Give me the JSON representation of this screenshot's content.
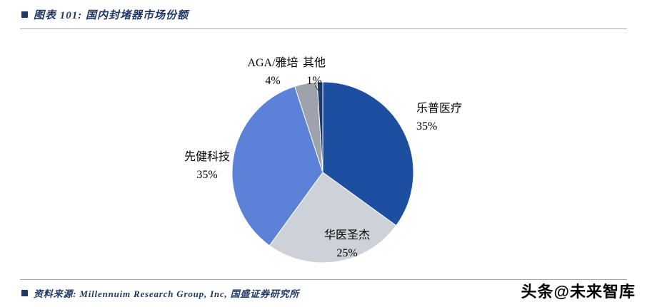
{
  "header": {
    "title": "图表 101: 国内封堵器市场份额"
  },
  "footer": {
    "source": "资料来源: Millennuim Research Group, Inc, 国盛证券研究所",
    "watermark": "头条@未来智库"
  },
  "chart_data": {
    "type": "pie",
    "title": "国内封堵器市场份额",
    "legend": "none",
    "labels": "outside",
    "start_angle_deg": 0,
    "clockwise": true,
    "slices": [
      {
        "name": "乐普医疗",
        "value": 35,
        "pct_label": "35%",
        "color": "#1C4FA0"
      },
      {
        "name": "华医圣杰",
        "value": 25,
        "pct_label": "25%",
        "color": "#CDD1D8"
      },
      {
        "name": "先健科技",
        "value": 35,
        "pct_label": "35%",
        "color": "#5B82D7"
      },
      {
        "name": "AGA/雅培",
        "value": 4,
        "pct_label": "4%",
        "color": "#9DA2AB"
      },
      {
        "name": "其他",
        "value": 1,
        "pct_label": "1%",
        "color": "#163A6E"
      }
    ]
  }
}
